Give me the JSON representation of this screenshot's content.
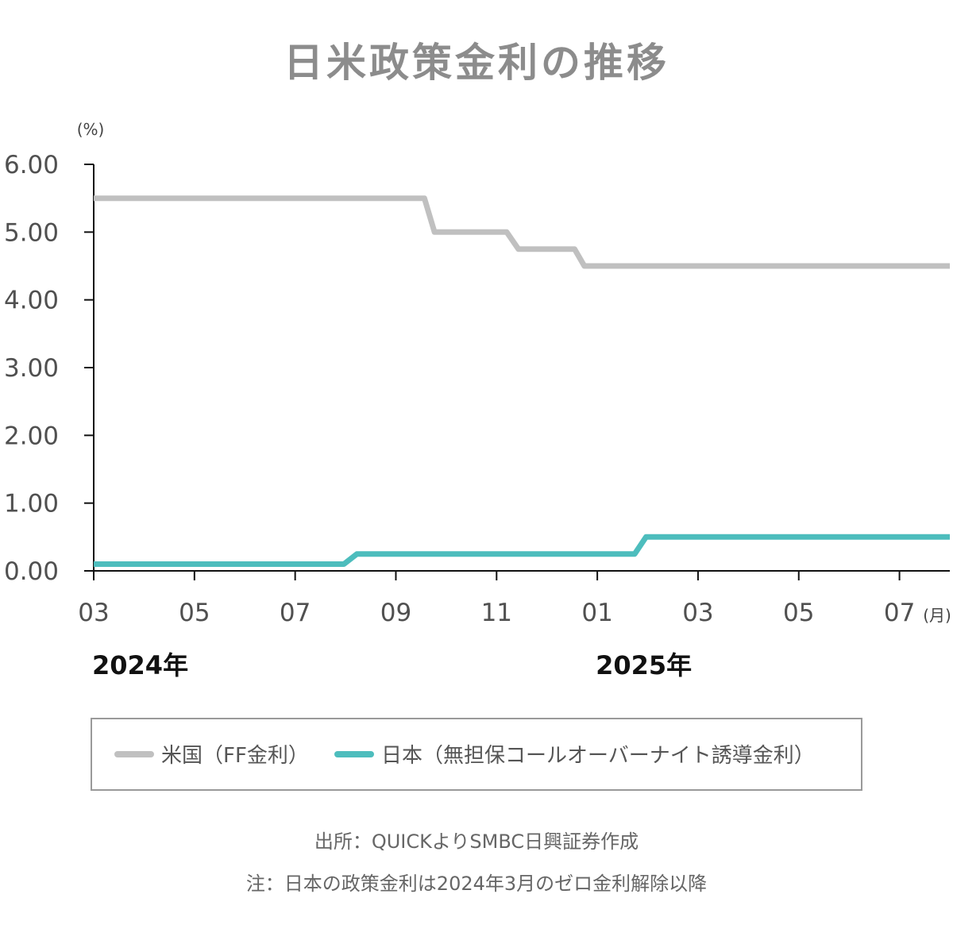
{
  "chart_data": {
    "type": "line",
    "title": "日米政策金利の推移",
    "ylabel": "(%)",
    "xlabel": "(月)",
    "ylim": [
      0,
      6
    ],
    "yticks": [
      "0.00",
      "1.00",
      "2.00",
      "3.00",
      "4.00",
      "5.00",
      "6.00"
    ],
    "xlim": [
      "2024-03",
      "2025-08"
    ],
    "xticks": [
      {
        "x": "2024-03",
        "label": "03"
      },
      {
        "x": "2024-05",
        "label": "05"
      },
      {
        "x": "2024-07",
        "label": "07"
      },
      {
        "x": "2024-09",
        "label": "09"
      },
      {
        "x": "2024-11",
        "label": "11"
      },
      {
        "x": "2025-01",
        "label": "01"
      },
      {
        "x": "2025-03",
        "label": "03"
      },
      {
        "x": "2025-05",
        "label": "05"
      },
      {
        "x": "2025-07",
        "label": "07"
      }
    ],
    "year_labels": [
      {
        "x": "2024-03",
        "label": "2024年"
      },
      {
        "x": "2025-01",
        "label": "2025年"
      }
    ],
    "grid": false,
    "legend_position": "bottom",
    "series": [
      {
        "name": "米国（FF金利）",
        "color": "#c0c0c0",
        "points": [
          {
            "x": "2024-03-01",
            "y": 5.5
          },
          {
            "x": "2024-09-18",
            "y": 5.5
          },
          {
            "x": "2024-09-24",
            "y": 5.0
          },
          {
            "x": "2024-11-07",
            "y": 5.0
          },
          {
            "x": "2024-11-14",
            "y": 4.75
          },
          {
            "x": "2024-12-18",
            "y": 4.75
          },
          {
            "x": "2024-12-24",
            "y": 4.5
          },
          {
            "x": "2025-08-01",
            "y": 4.5
          }
        ]
      },
      {
        "name": "日本（無担保コールオーバーナイト誘導金利）",
        "color": "#4dbdbd",
        "points": [
          {
            "x": "2024-03-01",
            "y": 0.1
          },
          {
            "x": "2024-07-31",
            "y": 0.1
          },
          {
            "x": "2024-08-08",
            "y": 0.25
          },
          {
            "x": "2025-01-24",
            "y": 0.25
          },
          {
            "x": "2025-01-31",
            "y": 0.5
          },
          {
            "x": "2025-08-01",
            "y": 0.5
          }
        ]
      }
    ]
  },
  "notes": {
    "source": "出所：QUICKよりSMBC日興証券作成",
    "note": "注：日本の政策金利は2024年3月のゼロ金利解除以降"
  }
}
